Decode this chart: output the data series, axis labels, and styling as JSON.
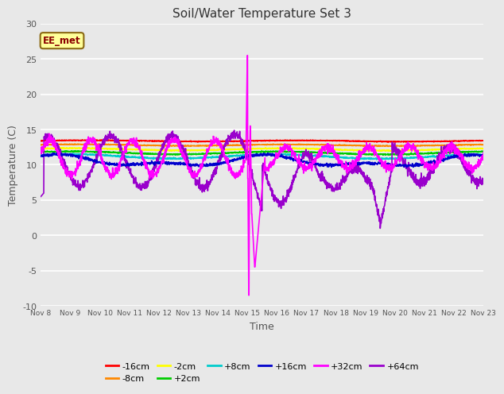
{
  "title": "Soil/Water Temperature Set 3",
  "xlabel": "Time",
  "ylabel": "Temperature (C)",
  "ylim": [
    -10,
    30
  ],
  "background_color": "#e8e8e8",
  "annotation_text": "EE_met",
  "annotation_bg": "#ffff99",
  "annotation_border": "#8b6914",
  "xtick_labels": [
    "Nov 8",
    "Nov 9",
    "Nov 10",
    "Nov 11",
    "Nov 12",
    "Nov 13",
    "Nov 14",
    "Nov 15",
    "Nov 16",
    "Nov 17",
    "Nov 18",
    "Nov 19",
    "Nov 20",
    "Nov 21",
    "Nov 22",
    "Nov 23"
  ],
  "series_colors": {
    "-16cm": "#ff0000",
    "-8cm": "#ff8800",
    "-2cm": "#ffff00",
    "+2cm": "#00cc00",
    "+8cm": "#00cccc",
    "+16cm": "#0000cc",
    "+32cm": "#ff00ff",
    "+64cm": "#9900cc"
  },
  "legend_order": [
    "-16cm",
    "-8cm",
    "-2cm",
    "+2cm",
    "+8cm",
    "+16cm",
    "+32cm",
    "+64cm"
  ]
}
